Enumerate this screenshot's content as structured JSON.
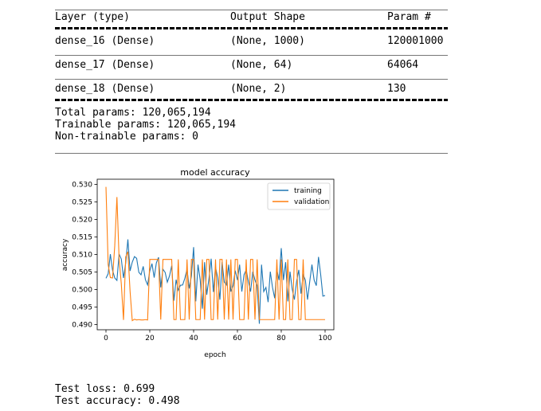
{
  "model_summary": {
    "headers": {
      "layer": "Layer (type)",
      "output": "Output Shape",
      "params": "Param #"
    },
    "rows": [
      {
        "layer": "dense_16 (Dense)",
        "output": "(None, 1000)",
        "params": "120001000"
      },
      {
        "layer": "dense_17 (Dense)",
        "output": "(None, 64)",
        "params": "64064"
      },
      {
        "layer": "dense_18 (Dense)",
        "output": "(None, 2)",
        "params": "130"
      }
    ],
    "total_params": "Total params: 120,065,194",
    "trainable_params": "Trainable params: 120,065,194",
    "non_trainable_params": "Non-trainable params: 0"
  },
  "chart_data": {
    "type": "line",
    "title": "model accuracy",
    "xlabel": "epoch",
    "ylabel": "accuracy",
    "xlim": [
      -4,
      104
    ],
    "ylim": [
      0.4885,
      0.5315
    ],
    "xticks": [
      0,
      20,
      40,
      60,
      80,
      100
    ],
    "yticks": [
      0.49,
      0.495,
      0.5,
      0.505,
      0.51,
      0.515,
      0.52,
      0.525,
      0.53
    ],
    "ytick_labels": [
      "0.490",
      "0.495",
      "0.500",
      "0.505",
      "0.510",
      "0.515",
      "0.520",
      "0.525",
      "0.530"
    ],
    "legend_position": "top-right",
    "grid": false,
    "series": [
      {
        "name": "training",
        "color": "#1f77b4",
        "values": [
          0.5032,
          0.5045,
          0.5101,
          0.5055,
          0.5033,
          0.5026,
          0.5101,
          0.5087,
          0.5033,
          0.5075,
          0.5143,
          0.5053,
          0.5078,
          0.5094,
          0.5089,
          0.5049,
          0.5042,
          0.5066,
          0.5028,
          0.5013,
          0.5053,
          0.5074,
          0.5034,
          0.5076,
          0.5092,
          0.5006,
          0.5058,
          0.5049,
          0.5021,
          0.5039,
          0.5068,
          0.4968,
          0.5028,
          0.4998,
          0.5012,
          0.5013,
          0.5032,
          0.5058,
          0.5003,
          0.5039,
          0.5121,
          0.4966,
          0.5071,
          0.5028,
          0.4945,
          0.5078,
          0.4985,
          0.5031,
          0.5088,
          0.4993,
          0.5064,
          0.5033,
          0.4971,
          0.5078,
          0.5021,
          0.5013,
          0.5071,
          0.4994,
          0.5011,
          0.5054,
          0.5027,
          0.5071,
          0.4994,
          0.5042,
          0.5056,
          0.5023,
          0.4994,
          0.5051,
          0.5027,
          0.5011,
          0.4902,
          0.5071,
          0.4994,
          0.5006,
          0.4964,
          0.5051,
          0.5006,
          0.4975,
          0.5056,
          0.5027,
          0.5118,
          0.5027,
          0.5078,
          0.4966,
          0.5051,
          0.5001,
          0.4971,
          0.5023,
          0.5056,
          0.4988,
          0.5042,
          0.5027,
          0.4971,
          0.5023,
          0.5071,
          0.5027,
          0.5011,
          0.5093,
          0.5042,
          0.4981,
          0.4983
        ]
      },
      {
        "name": "validation",
        "color": "#ff7f0e",
        "values": [
          0.5293,
          0.5071,
          0.5034,
          0.5033,
          0.5124,
          0.5264,
          0.5087,
          0.5016,
          0.4913,
          0.5093,
          0.5108,
          0.4995,
          0.4911,
          0.4915,
          0.4913,
          0.4914,
          0.4913,
          0.4913,
          0.4914,
          0.4913,
          0.5086,
          0.5086,
          0.5086,
          0.5086,
          0.5086,
          0.4914,
          0.5086,
          0.5086,
          0.5086,
          0.5086,
          0.5086,
          0.4914,
          0.4914,
          0.5086,
          0.4914,
          0.4914,
          0.4914,
          0.5086,
          0.4914,
          0.5086,
          0.5086,
          0.4914,
          0.4914,
          0.4914,
          0.5086,
          0.4914,
          0.5086,
          0.5086,
          0.4914,
          0.4914,
          0.5086,
          0.4914,
          0.5086,
          0.5086,
          0.4914,
          0.5086,
          0.4914,
          0.5086,
          0.4914,
          0.5086,
          0.5086,
          0.4914,
          0.4914,
          0.4914,
          0.5086,
          0.4914,
          0.5086,
          0.5086,
          0.4914,
          0.5086,
          0.4914,
          0.4914,
          0.4914,
          0.4914,
          0.4914,
          0.4914,
          0.4914,
          0.4914,
          0.5086,
          0.4914,
          0.5086,
          0.4914,
          0.4914,
          0.5086,
          0.4914,
          0.4914,
          0.5086,
          0.5086,
          0.4914,
          0.4914,
          0.5086,
          0.4914,
          0.4914,
          0.4914,
          0.4914,
          0.4914,
          0.4914,
          0.4914,
          0.4914,
          0.4914,
          0.4914
        ]
      }
    ]
  },
  "test_results": {
    "loss": "Test loss: 0.699",
    "accuracy": "Test accuracy: 0.498"
  }
}
